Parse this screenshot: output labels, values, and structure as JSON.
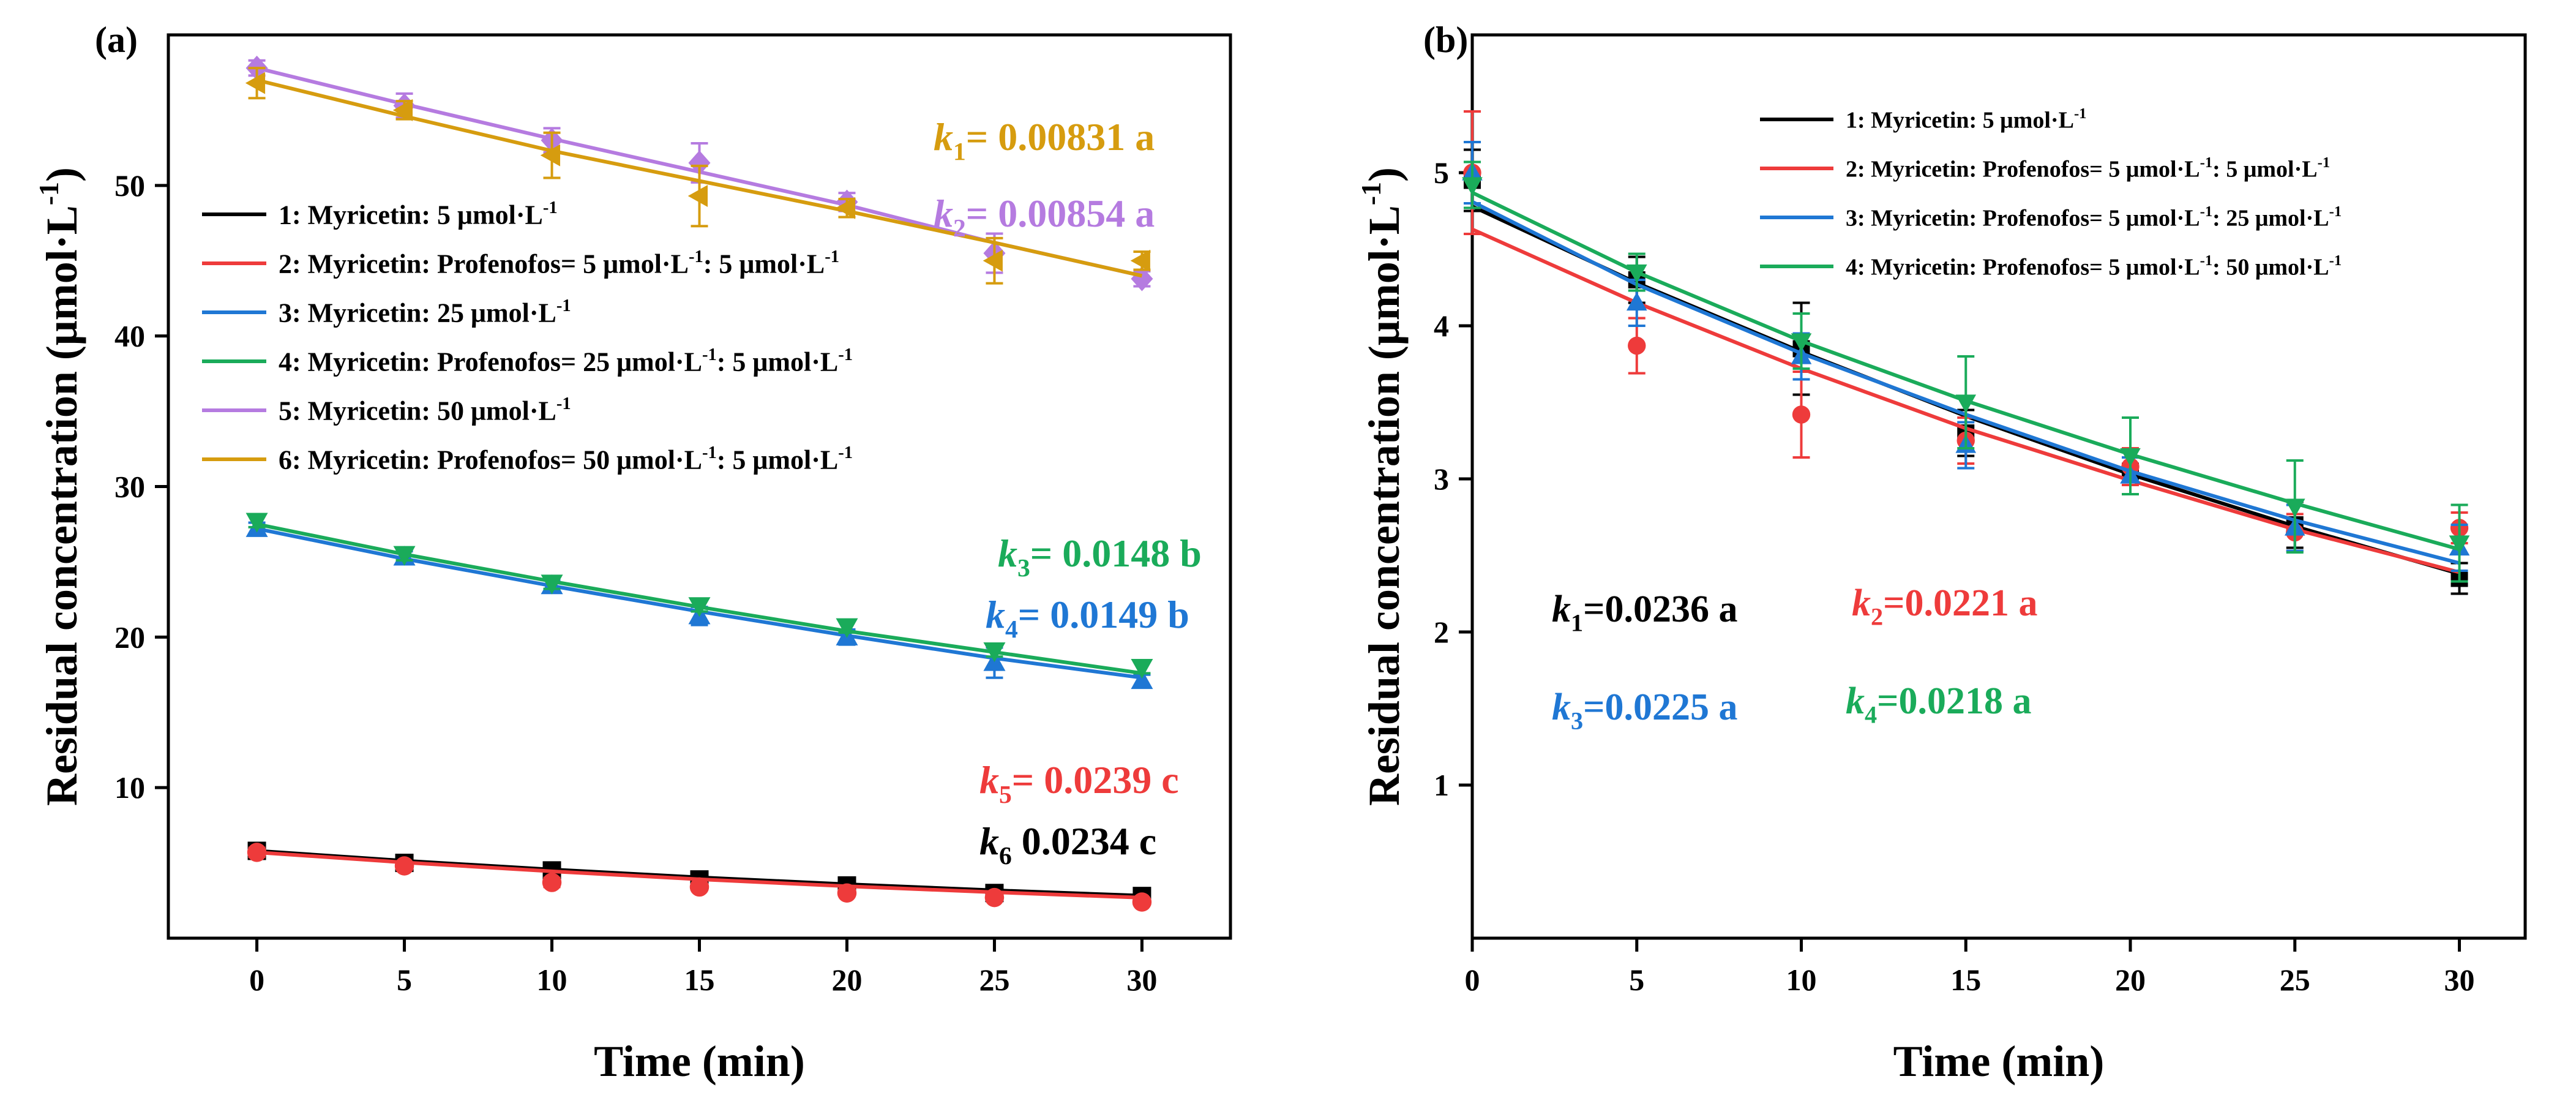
{
  "chart_data": [
    {
      "panel_label": "(a)",
      "type": "line",
      "xlabel": "Time (min)",
      "ylabel_main": "Residual concentration (μmol·L",
      "ylabel_sup": "-1",
      "ylabel_close": ")",
      "xlim": [
        -3,
        33
      ],
      "ylim": [
        0,
        60
      ],
      "xticks": [
        0,
        5,
        10,
        15,
        20,
        25,
        30
      ],
      "yticks": [
        10,
        20,
        30,
        40,
        50
      ],
      "series": [
        {
          "name_main": "1: Myricetin: 5 μmol·L",
          "name_sup": "-1",
          "name_tail": "",
          "color": "#000000",
          "marker": "square",
          "x": [
            0,
            5,
            10,
            15,
            20,
            25,
            30
          ],
          "y": [
            5.8,
            5.0,
            4.5,
            3.9,
            3.5,
            3.0,
            2.8
          ],
          "err": [
            0.3,
            0.2,
            0.3,
            0.2,
            0.2,
            0.2,
            0.2
          ],
          "fit": [
            5.8,
            5.14,
            4.56,
            4.04,
            3.58,
            3.18,
            2.82
          ]
        },
        {
          "name_main": "2: Myricetin: Profenofos= 5 μmol·L",
          "name_sup": "-1",
          "name_tail": ": 5 μmol·L",
          "name_sup2": "-1",
          "color": "#ee3b3b",
          "marker": "circle",
          "x": [
            0,
            5,
            10,
            15,
            20,
            25,
            30
          ],
          "y": [
            5.7,
            4.8,
            3.7,
            3.4,
            3.0,
            2.7,
            2.4
          ],
          "err": [
            0.3,
            0.2,
            0.3,
            0.2,
            0.2,
            0.2,
            0.2
          ],
          "fit": [
            5.7,
            5.03,
            4.44,
            3.91,
            3.45,
            3.05,
            2.69
          ]
        },
        {
          "name_main": "3: Myricetin: 25 μmol·L",
          "name_sup": "-1",
          "name_tail": "",
          "color": "#1f77d4",
          "marker": "triangle-up",
          "x": [
            0,
            5,
            10,
            15,
            20,
            25,
            30
          ],
          "y": [
            27.2,
            25.3,
            23.4,
            21.4,
            20.0,
            18.3,
            17.1
          ],
          "err": [
            0.4,
            0.4,
            0.4,
            0.6,
            0.5,
            1.0,
            0.4
          ],
          "fit": [
            27.2,
            25.2,
            23.4,
            21.7,
            20.1,
            18.6,
            17.3
          ]
        },
        {
          "name_main": "4: Myricetin: Profenofos= 25 μmol·L",
          "name_sup": "-1",
          "name_tail": ": 5 μmol·L",
          "name_sup2": "-1",
          "color": "#1aab5a",
          "marker": "triangle-down",
          "x": [
            0,
            5,
            10,
            15,
            20,
            25,
            30
          ],
          "y": [
            27.7,
            25.5,
            23.6,
            22.1,
            20.7,
            19.1,
            18.0
          ],
          "err": [
            0.4,
            0.4,
            0.4,
            0.4,
            0.4,
            0.4,
            0.4
          ],
          "fit": [
            27.5,
            25.5,
            23.7,
            22.0,
            20.4,
            19.0,
            17.6
          ]
        },
        {
          "name_main": "5: Myricetin: 50 μmol·L",
          "name_sup": "-1",
          "name_tail": "",
          "color": "#b57be0",
          "marker": "diamond",
          "x": [
            0,
            5,
            10,
            15,
            20,
            25,
            30
          ],
          "y": [
            57.8,
            55.3,
            53.0,
            51.5,
            48.9,
            45.5,
            43.8
          ],
          "err": [
            0.5,
            0.8,
            0.8,
            1.3,
            0.6,
            1.3,
            0.5
          ],
          "fit": [
            57.8,
            55.4,
            53.1,
            50.9,
            48.7,
            46.2,
            44.0
          ]
        },
        {
          "name_main": "6: Myricetin: Profenofos= 50 μmol·L",
          "name_sup": "-1",
          "name_tail": ": 5 μmol·L",
          "name_sup2": "-1",
          "color": "#d69c0f",
          "marker": "triangle-left",
          "x": [
            0,
            5,
            10,
            15,
            20,
            25,
            30
          ],
          "y": [
            56.8,
            55.0,
            52.0,
            49.3,
            48.5,
            45.0,
            45.0
          ],
          "err": [
            1.0,
            0.6,
            1.5,
            2.0,
            0.6,
            1.5,
            0.6
          ],
          "fit": [
            57.0,
            54.6,
            52.3,
            50.3,
            48.3,
            46.2,
            44.0
          ]
        }
      ],
      "annotations": [
        {
          "k": "k",
          "sub": "1",
          "text": "= 0.00831 a",
          "color": "#d69c0f"
        },
        {
          "k": "k",
          "sub": "2",
          "text": "= 0.00854 a",
          "color": "#b57be0"
        },
        {
          "k": "k",
          "sub": "3",
          "text": "= 0.0148 b",
          "color": "#1aab5a"
        },
        {
          "k": "k",
          "sub": "4",
          "text": "= 0.0149 b",
          "color": "#1f77d4"
        },
        {
          "k": "k",
          "sub": "5",
          "text": "= 0.0239 c",
          "color": "#ee3b3b"
        },
        {
          "k": "k",
          "sub": "6",
          "text": " 0.0234 c",
          "color": "#000000"
        }
      ]
    },
    {
      "panel_label": "(b)",
      "type": "line",
      "xlabel": "Time (min)",
      "ylabel_main": "Residual concentration (μmol·L",
      "ylabel_sup": "-1",
      "ylabel_close": ")",
      "xlim": [
        0,
        32
      ],
      "ylim": [
        0,
        5.9
      ],
      "xticks": [
        0,
        5,
        10,
        15,
        20,
        25,
        30
      ],
      "yticks": [
        1,
        2,
        3,
        4,
        5
      ],
      "series": [
        {
          "name_main": "1: Myricetin: 5 μmol·L",
          "name_sup": "-1",
          "name_tail": "",
          "color": "#000000",
          "marker": "square",
          "x": [
            0,
            5,
            10,
            15,
            20,
            25,
            30
          ],
          "y": [
            4.95,
            4.3,
            3.85,
            3.3,
            3.05,
            2.7,
            2.35
          ],
          "err": [
            0.2,
            0.15,
            0.3,
            0.15,
            0.15,
            0.15,
            0.1
          ],
          "fit": [
            4.78,
            4.28,
            3.83,
            3.41,
            3.03,
            2.69,
            2.38
          ]
        },
        {
          "name_main": "2: Myricetin: Profenofos= 5 μmol·L",
          "name_sup": "-1",
          "name_tail": ": 5 μmol·L",
          "name_sup2": "-1",
          "color": "#ee3b3b",
          "marker": "circle",
          "x": [
            0,
            5,
            10,
            15,
            20,
            25,
            30
          ],
          "y": [
            5.0,
            3.87,
            3.42,
            3.25,
            3.08,
            2.65,
            2.68
          ],
          "err": [
            0.4,
            0.18,
            0.28,
            0.15,
            0.12,
            0.12,
            0.1
          ],
          "fit": [
            4.63,
            4.15,
            3.72,
            3.33,
            2.99,
            2.67,
            2.39
          ]
        },
        {
          "name_main": "3: Myricetin: Profenofos= 5 μmol·L",
          "name_sup": "-1",
          "name_tail": ": 25 μmol·L",
          "name_sup2": "-1",
          "color": "#1f77d4",
          "marker": "triangle-up",
          "x": [
            0,
            5,
            10,
            15,
            20,
            25,
            30
          ],
          "y": [
            5.0,
            4.15,
            3.8,
            3.22,
            3.02,
            2.68,
            2.55
          ],
          "err": [
            0.2,
            0.15,
            0.15,
            0.15,
            0.12,
            0.15,
            0.15
          ],
          "fit": [
            4.81,
            4.27,
            3.82,
            3.42,
            3.05,
            2.73,
            2.45
          ]
        },
        {
          "name_main": "4: Myricetin: Profenofos= 5 μmol·L",
          "name_sup": "-1",
          "name_tail": ": 50 μmol·L",
          "name_sup2": "-1",
          "color": "#1aab5a",
          "marker": "triangle-down",
          "x": [
            0,
            5,
            10,
            15,
            20,
            25,
            30
          ],
          "y": [
            4.92,
            4.35,
            3.9,
            3.5,
            3.15,
            2.82,
            2.58
          ],
          "err": [
            0.15,
            0.12,
            0.18,
            0.3,
            0.25,
            0.3,
            0.25
          ],
          "fit": [
            4.87,
            4.35,
            3.9,
            3.51,
            3.16,
            2.84,
            2.54
          ]
        }
      ],
      "annotations": [
        {
          "k": "k",
          "sub": "1",
          "text": "=0.0236 a",
          "color": "#000000"
        },
        {
          "k": "k",
          "sub": "2",
          "text": "=0.0221 a",
          "color": "#ee3b3b"
        },
        {
          "k": "k",
          "sub": "3",
          "text": "=0.0225 a",
          "color": "#1f77d4"
        },
        {
          "k": "k",
          "sub": "4",
          "text": "=0.0218 a",
          "color": "#1aab5a"
        }
      ]
    }
  ]
}
